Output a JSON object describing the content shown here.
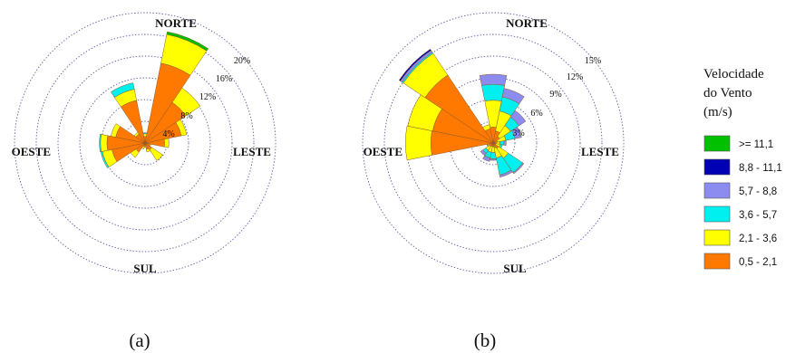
{
  "chart_data": [
    {
      "type": "wind-rose",
      "panel_label": "(a)",
      "directions": {
        "north": "NORTE",
        "south": "SUL",
        "east": "LESTE",
        "west": "OESTE"
      },
      "rings": [
        4,
        8,
        12,
        16,
        20
      ],
      "ring_labels": [
        "4%",
        "8%",
        "12%",
        "16%",
        "20%"
      ],
      "rmax": 24,
      "sector_width_deg": 22.5,
      "bins": [
        "0,5 - 2,1",
        "2,1 - 3,6",
        "3,6 - 5,7",
        "5,7 - 8,8",
        "8,8 - 11,1",
        ">= 11,1"
      ],
      "sectors": [
        {
          "direction": "N",
          "values": [
            1.2,
            0.5,
            0.2,
            0,
            0,
            0
          ]
        },
        {
          "direction": "NNE",
          "values": [
            15.0,
            5.4,
            0.0,
            0,
            0,
            0.5
          ]
        },
        {
          "direction": "NE",
          "values": [
            9.0,
            3.2,
            0,
            0,
            0,
            0
          ]
        },
        {
          "direction": "ENE",
          "values": [
            6.8,
            1.0,
            0,
            0,
            0,
            0
          ]
        },
        {
          "direction": "E",
          "values": [
            3.6,
            0.8,
            0,
            0,
            0,
            0
          ]
        },
        {
          "direction": "ESE",
          "values": [
            0.9,
            0.2,
            0,
            0,
            0,
            0
          ]
        },
        {
          "direction": "SE",
          "values": [
            1.5,
            2.4,
            0,
            0,
            0,
            0
          ]
        },
        {
          "direction": "SSE",
          "values": [
            1.2,
            0.5,
            0,
            0,
            0,
            0
          ]
        },
        {
          "direction": "S",
          "values": [
            0.5,
            0.3,
            0,
            0,
            0,
            0
          ]
        },
        {
          "direction": "SSW",
          "values": [
            0.7,
            0.4,
            0,
            0,
            0,
            0
          ]
        },
        {
          "direction": "SW",
          "values": [
            2.0,
            1.2,
            0,
            0,
            0,
            0
          ]
        },
        {
          "direction": "WSW",
          "values": [
            6.2,
            1.8,
            0.3,
            0,
            0,
            0
          ]
        },
        {
          "direction": "W",
          "values": [
            7.0,
            1.2,
            0.2,
            0,
            0,
            0
          ]
        },
        {
          "direction": "WNW",
          "values": [
            5.5,
            0.9,
            0,
            0,
            0,
            0
          ]
        },
        {
          "direction": "NW",
          "values": [
            2.0,
            0.4,
            0,
            0,
            0,
            0
          ]
        },
        {
          "direction": "NNW",
          "values": [
            8.0,
            2.1,
            1.2,
            0,
            0,
            0
          ]
        }
      ]
    },
    {
      "type": "wind-rose",
      "panel_label": "(b)",
      "directions": {
        "north": "NORTE",
        "south": "SUL",
        "east": "LESTE",
        "west": "OESTE"
      },
      "rings": [
        3,
        6,
        9,
        12,
        15
      ],
      "ring_labels": [
        "3%",
        "6%",
        "9%",
        "12%",
        "15%"
      ],
      "rmax": 18,
      "sector_width_deg": 22.5,
      "bins": [
        "0,5 - 2,1",
        "2,1 - 3,6",
        "3,6 - 5,7",
        "5,7 - 8,8",
        "8,8 - 11,1",
        ">= 11,1"
      ],
      "sectors": [
        {
          "direction": "N",
          "values": [
            2.2,
            3.7,
            2.2,
            1.4,
            0,
            0
          ]
        },
        {
          "direction": "NNE",
          "values": [
            1.7,
            2.8,
            2.0,
            1.2,
            0,
            0
          ]
        },
        {
          "direction": "NE",
          "values": [
            1.1,
            1.8,
            1.4,
            1.1,
            0,
            0
          ]
        },
        {
          "direction": "ENE",
          "values": [
            0.6,
            1.2,
            1.3,
            0.9,
            0,
            0
          ]
        },
        {
          "direction": "E",
          "values": [
            0.4,
            0.5,
            0.6,
            0.3,
            0,
            0
          ]
        },
        {
          "direction": "ESE",
          "values": [
            0.4,
            0.6,
            0.3,
            0,
            0,
            0
          ]
        },
        {
          "direction": "SE",
          "values": [
            0.9,
            1.6,
            2.4,
            0.2,
            0,
            0
          ]
        },
        {
          "direction": "SSE",
          "values": [
            0.7,
            1.4,
            2.4,
            0.3,
            0,
            0
          ]
        },
        {
          "direction": "S",
          "values": [
            0.5,
            0.8,
            0.9,
            0.2,
            0,
            0
          ]
        },
        {
          "direction": "SSW",
          "values": [
            0.5,
            0.8,
            0.8,
            0.5,
            0,
            0
          ]
        },
        {
          "direction": "SW",
          "values": [
            0.6,
            0.6,
            0.5,
            0.4,
            0,
            0
          ]
        },
        {
          "direction": "WSW",
          "values": [
            0.6,
            0.2,
            0.1,
            0,
            0,
            0
          ]
        },
        {
          "direction": "W",
          "values": [
            8.6,
            3.5,
            0,
            0,
            0,
            0
          ]
        },
        {
          "direction": "WNW",
          "values": [
            8.5,
            3.5,
            0,
            0,
            0,
            0
          ]
        },
        {
          "direction": "NW",
          "values": [
            11.3,
            3.6,
            0.2,
            0.3,
            0.2,
            0
          ]
        },
        {
          "direction": "NNW",
          "values": [
            2.0,
            0.6,
            0,
            0,
            0,
            0
          ]
        }
      ]
    }
  ],
  "legend": {
    "title_lines": [
      "Velocidade",
      "do Vento",
      "(m/s)"
    ],
    "items": [
      {
        "label": ">= 11,1",
        "color": "#00c000"
      },
      {
        "label": "8,8 - 11,1",
        "color": "#0000b4"
      },
      {
        "label": "5,7 - 8,8",
        "color": "#8c8cf0"
      },
      {
        "label": "3,6 - 5,7",
        "color": "#00f0f0"
      },
      {
        "label": "2,1 - 3,6",
        "color": "#ffff00"
      },
      {
        "label": "0,5 - 2,1",
        "color": "#ff7800"
      }
    ]
  },
  "colors": {
    "bins": [
      "#ff7800",
      "#ffff00",
      "#00f0f0",
      "#8c8cf0",
      "#0000b4",
      "#00c000"
    ],
    "ring": "#5b5ba6",
    "edge": "#8a5a2a"
  }
}
